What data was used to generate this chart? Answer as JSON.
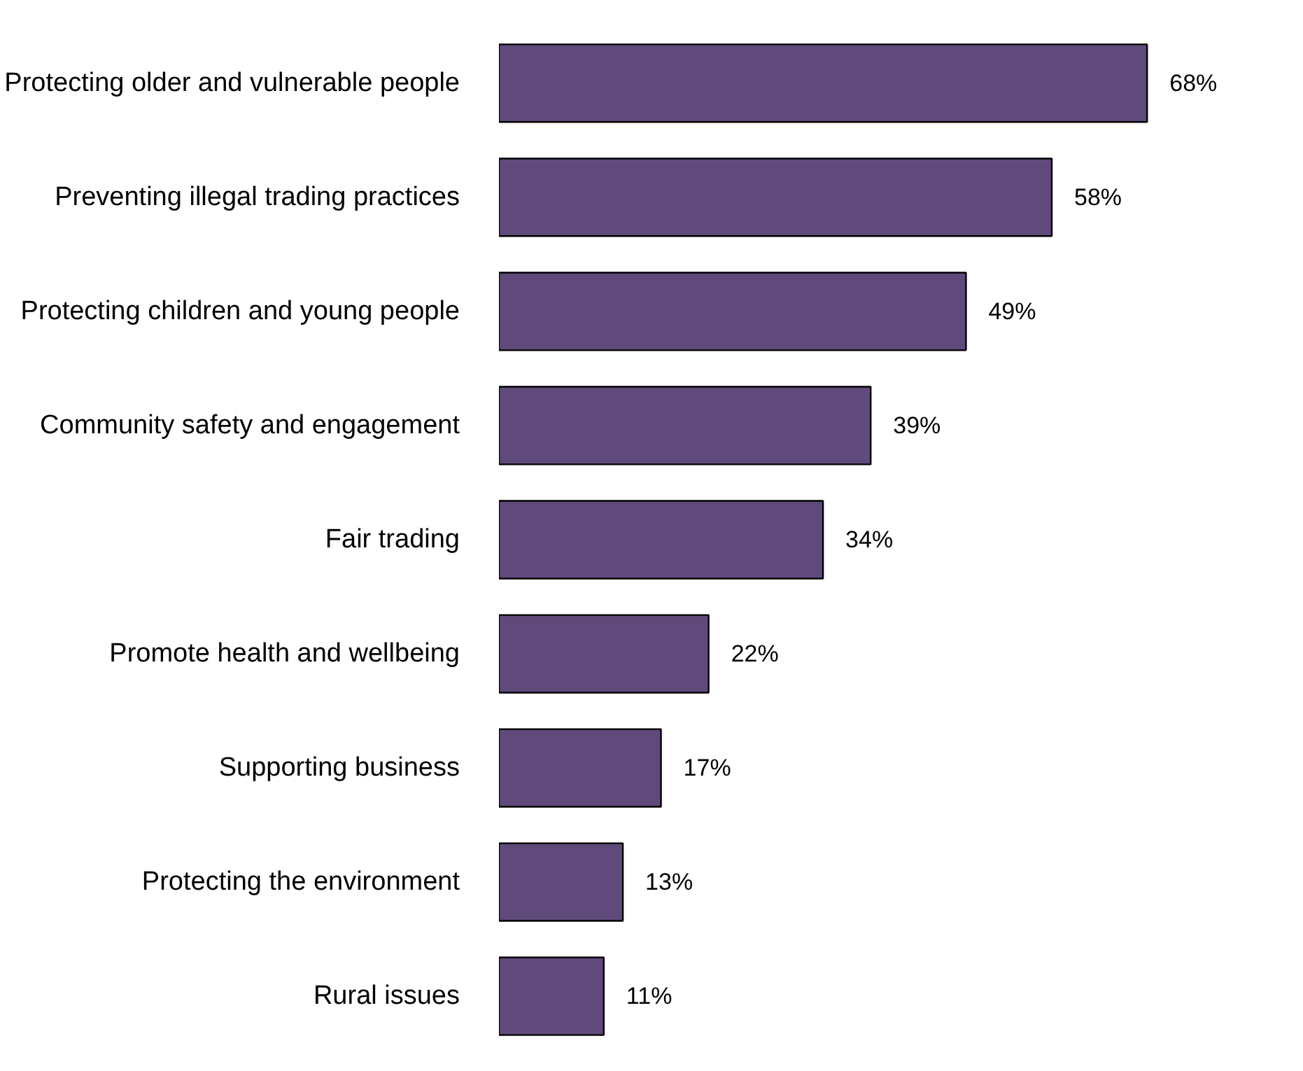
{
  "chart_data": {
    "type": "bar",
    "orientation": "horizontal",
    "categories": [
      "Protecting older and vulnerable people",
      "Preventing illegal trading practices",
      "Protecting children and young people",
      "Community safety and engagement",
      "Fair trading",
      "Promote health and wellbeing",
      "Supporting business",
      "Protecting the environment",
      "Rural issues"
    ],
    "values": [
      68,
      58,
      49,
      39,
      34,
      22,
      17,
      13,
      11
    ],
    "value_labels": [
      "68%",
      "58%",
      "49%",
      "39%",
      "34%",
      "22%",
      "17%",
      "13%",
      "11%"
    ],
    "color": "#604a7b"
  }
}
